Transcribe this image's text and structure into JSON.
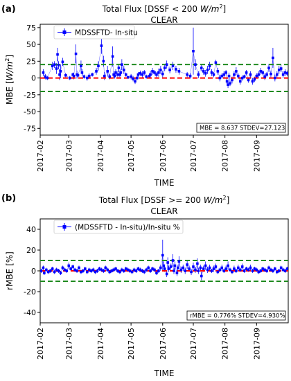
{
  "chart_data": [
    {
      "panel_label": "(a)",
      "type": "scatter",
      "title_line1_pre": "Total Flux  [DSSF < 200 ",
      "title_unit": "W/m",
      "title_sup": "2",
      "title_line1_post": "]",
      "title_line2": "CLEAR",
      "ylabel_pre": "MBE [",
      "ylabel_unit": "W/m",
      "ylabel_sup": "2",
      "ylabel_post": "]",
      "xlabel": "TIME",
      "ylim": [
        -85,
        80
      ],
      "yticks": [
        -75,
        -50,
        -25,
        0,
        25,
        50,
        75
      ],
      "xlim": [
        0,
        243
      ],
      "xtick_labels": [
        "2017-02",
        "2017-03",
        "2017-04",
        "2017-05",
        "2017-06",
        "2017-07",
        "2017-08",
        "2017-09"
      ],
      "xtick_days": [
        0,
        28,
        59,
        89,
        120,
        150,
        181,
        212
      ],
      "legend": "MDSSFTD- In-situ",
      "legend_placement": "top-left",
      "stats": "MBE = 8.637  STDEV=27.123",
      "ref_lines": [
        {
          "y": 20,
          "color": "#1f8a1f",
          "style": "dashed"
        },
        {
          "y": 0,
          "color": "#ff0000",
          "style": "dashed"
        },
        {
          "y": -20,
          "color": "#1f8a1f",
          "style": "dashed"
        }
      ],
      "series_color": "#0000ff",
      "points": [
        [
          3,
          8,
          5
        ],
        [
          5,
          2,
          4
        ],
        [
          7,
          0,
          3
        ],
        [
          12,
          18,
          6
        ],
        [
          14,
          20,
          5
        ],
        [
          16,
          14,
          8
        ],
        [
          17,
          35,
          10
        ],
        [
          18,
          19,
          6
        ],
        [
          19,
          5,
          8
        ],
        [
          20,
          10,
          10
        ],
        [
          22,
          24,
          6
        ],
        [
          25,
          4,
          3
        ],
        [
          29,
          0,
          3
        ],
        [
          32,
          5,
          3
        ],
        [
          33,
          3,
          5
        ],
        [
          35,
          36,
          14
        ],
        [
          36,
          5,
          6
        ],
        [
          37,
          4,
          3
        ],
        [
          40,
          18,
          8
        ],
        [
          41,
          8,
          5
        ],
        [
          43,
          2,
          3
        ],
        [
          46,
          0,
          4
        ],
        [
          48,
          3,
          4
        ],
        [
          51,
          5,
          3
        ],
        [
          55,
          10,
          5
        ],
        [
          57,
          18,
          7
        ],
        [
          60,
          48,
          12
        ],
        [
          62,
          25,
          8
        ],
        [
          63,
          3,
          6
        ],
        [
          66,
          10,
          8
        ],
        [
          68,
          2,
          4
        ],
        [
          71,
          32,
          15
        ],
        [
          72,
          5,
          5
        ],
        [
          73,
          3,
          4
        ],
        [
          74,
          8,
          5
        ],
        [
          76,
          5,
          5
        ],
        [
          77,
          15,
          6
        ],
        [
          78,
          5,
          4
        ],
        [
          79,
          8,
          5
        ],
        [
          80,
          20,
          8
        ],
        [
          82,
          12,
          6
        ],
        [
          84,
          5,
          3
        ],
        [
          86,
          1,
          2
        ],
        [
          89,
          2,
          4
        ],
        [
          91,
          -1,
          4
        ],
        [
          93,
          -5,
          4
        ],
        [
          95,
          0,
          3
        ],
        [
          96,
          5,
          4
        ],
        [
          98,
          7,
          4
        ],
        [
          100,
          5,
          5
        ],
        [
          102,
          8,
          4
        ],
        [
          104,
          2,
          3
        ],
        [
          107,
          3,
          4
        ],
        [
          108,
          5,
          6
        ],
        [
          110,
          10,
          5
        ],
        [
          112,
          8,
          4
        ],
        [
          114,
          5,
          4
        ],
        [
          116,
          8,
          6
        ],
        [
          118,
          12,
          6
        ],
        [
          120,
          6,
          5
        ],
        [
          122,
          15,
          5
        ],
        [
          124,
          20,
          6
        ],
        [
          127,
          12,
          5
        ],
        [
          130,
          18,
          6
        ],
        [
          133,
          13,
          5
        ],
        [
          136,
          10,
          5
        ],
        [
          144,
          5,
          4
        ],
        [
          147,
          3,
          4
        ],
        [
          150,
          40,
          35
        ],
        [
          152,
          20,
          8
        ],
        [
          155,
          5,
          5
        ],
        [
          158,
          15,
          5
        ],
        [
          160,
          10,
          5
        ],
        [
          162,
          7,
          5
        ],
        [
          164,
          12,
          6
        ],
        [
          166,
          18,
          6
        ],
        [
          168,
          8,
          5
        ],
        [
          170,
          5,
          4
        ],
        [
          172,
          23,
          4
        ],
        [
          174,
          10,
          5
        ],
        [
          176,
          0,
          5
        ],
        [
          178,
          3,
          4
        ],
        [
          180,
          5,
          5
        ],
        [
          182,
          8,
          4
        ],
        [
          183,
          -5,
          4
        ],
        [
          184,
          -10,
          5
        ],
        [
          185,
          3,
          5
        ],
        [
          186,
          -8,
          4
        ],
        [
          188,
          -3,
          5
        ],
        [
          190,
          5,
          5
        ],
        [
          192,
          10,
          6
        ],
        [
          194,
          3,
          4
        ],
        [
          196,
          -5,
          5
        ],
        [
          198,
          0,
          4
        ],
        [
          200,
          2,
          3
        ],
        [
          202,
          8,
          4
        ],
        [
          204,
          -3,
          4
        ],
        [
          206,
          5,
          5
        ],
        [
          208,
          -5,
          5
        ],
        [
          210,
          -2,
          4
        ],
        [
          212,
          3,
          4
        ],
        [
          214,
          5,
          5
        ],
        [
          216,
          10,
          5
        ],
        [
          218,
          8,
          4
        ],
        [
          220,
          2,
          5
        ],
        [
          222,
          5,
          4
        ],
        [
          224,
          15,
          6
        ],
        [
          226,
          6,
          5
        ],
        [
          228,
          30,
          15
        ],
        [
          230,
          0,
          5
        ],
        [
          232,
          5,
          5
        ],
        [
          234,
          12,
          6
        ],
        [
          236,
          14,
          5
        ],
        [
          238,
          5,
          5
        ],
        [
          240,
          8,
          5
        ],
        [
          242,
          7,
          4
        ]
      ]
    },
    {
      "panel_label": "(b)",
      "type": "scatter",
      "title_line1_pre": "Total Flux  [DSSF >= 200 ",
      "title_unit": "W/m",
      "title_sup": "2",
      "title_line1_post": "]",
      "title_line2": "CLEAR",
      "ylabel_pre": "rMBE [%]",
      "ylabel_unit": "",
      "ylabel_sup": "",
      "ylabel_post": "",
      "xlabel": "TIME",
      "ylim": [
        -50,
        50
      ],
      "yticks": [
        -40,
        -20,
        0,
        20,
        40
      ],
      "xlim": [
        0,
        243
      ],
      "xtick_labels": [
        "2017-02",
        "2017-03",
        "2017-04",
        "2017-05",
        "2017-06",
        "2017-07",
        "2017-08",
        "2017-09"
      ],
      "xtick_days": [
        0,
        28,
        59,
        89,
        120,
        150,
        181,
        212
      ],
      "legend": "(MDSSFTD - In-situ)/In-situ %",
      "legend_placement": "top-left",
      "stats": "rMBE = 0.776%   STDEV=4.930%",
      "ref_lines": [
        {
          "y": 10,
          "color": "#1f8a1f",
          "style": "dashed"
        },
        {
          "y": 0,
          "color": "#ff0000",
          "style": "dashed"
        },
        {
          "y": -10,
          "color": "#1f8a1f",
          "style": "dashed"
        }
      ],
      "series_color": "#0000ff",
      "points": [
        [
          1,
          0,
          2
        ],
        [
          3,
          3,
          2
        ],
        [
          4,
          -2,
          2
        ],
        [
          6,
          1,
          2
        ],
        [
          8,
          -1,
          2
        ],
        [
          10,
          0,
          2
        ],
        [
          12,
          2,
          2
        ],
        [
          14,
          -1,
          2
        ],
        [
          16,
          1,
          2
        ],
        [
          18,
          0,
          2
        ],
        [
          20,
          -2,
          2
        ],
        [
          22,
          3,
          2
        ],
        [
          24,
          1,
          2
        ],
        [
          26,
          0,
          2
        ],
        [
          28,
          5,
          3
        ],
        [
          30,
          2,
          2
        ],
        [
          32,
          4,
          2
        ],
        [
          34,
          1,
          2
        ],
        [
          36,
          0,
          2
        ],
        [
          38,
          3,
          2
        ],
        [
          40,
          -1,
          2
        ],
        [
          42,
          0,
          2
        ],
        [
          44,
          2,
          2
        ],
        [
          46,
          -1,
          2
        ],
        [
          48,
          1,
          2
        ],
        [
          50,
          0,
          2
        ],
        [
          52,
          1,
          2
        ],
        [
          54,
          -1,
          2
        ],
        [
          56,
          0,
          2
        ],
        [
          58,
          2,
          2
        ],
        [
          60,
          1,
          2
        ],
        [
          62,
          0,
          2
        ],
        [
          64,
          3,
          2
        ],
        [
          66,
          1,
          2
        ],
        [
          68,
          -1,
          2
        ],
        [
          70,
          0,
          2
        ],
        [
          72,
          1,
          2
        ],
        [
          74,
          2,
          2
        ],
        [
          76,
          0,
          2
        ],
        [
          78,
          -1,
          2
        ],
        [
          80,
          1,
          2
        ],
        [
          82,
          0,
          2
        ],
        [
          84,
          2,
          2
        ],
        [
          86,
          1,
          2
        ],
        [
          88,
          0,
          2
        ],
        [
          90,
          -1,
          2
        ],
        [
          92,
          1,
          2
        ],
        [
          94,
          0,
          2
        ],
        [
          96,
          2,
          2
        ],
        [
          98,
          1,
          2
        ],
        [
          100,
          0,
          2
        ],
        [
          102,
          -1,
          2
        ],
        [
          104,
          1,
          2
        ],
        [
          106,
          3,
          2
        ],
        [
          108,
          0,
          2
        ],
        [
          110,
          2,
          2
        ],
        [
          112,
          1,
          2
        ],
        [
          114,
          -2,
          2
        ],
        [
          116,
          0,
          2
        ],
        [
          118,
          3,
          3
        ],
        [
          120,
          15,
          15
        ],
        [
          121,
          5,
          4
        ],
        [
          122,
          2,
          3
        ],
        [
          124,
          -3,
          3
        ],
        [
          125,
          8,
          5
        ],
        [
          126,
          2,
          3
        ],
        [
          128,
          4,
          3
        ],
        [
          130,
          10,
          6
        ],
        [
          131,
          0,
          3
        ],
        [
          132,
          5,
          4
        ],
        [
          134,
          -2,
          3
        ],
        [
          135,
          3,
          3
        ],
        [
          136,
          9,
          5
        ],
        [
          138,
          1,
          3
        ],
        [
          140,
          3,
          3
        ],
        [
          142,
          0,
          3
        ],
        [
          144,
          6,
          4
        ],
        [
          146,
          2,
          3
        ],
        [
          148,
          -1,
          3
        ],
        [
          150,
          4,
          4
        ],
        [
          152,
          1,
          3
        ],
        [
          154,
          7,
          5
        ],
        [
          155,
          0,
          3
        ],
        [
          157,
          3,
          3
        ],
        [
          158,
          -5,
          4
        ],
        [
          160,
          2,
          3
        ],
        [
          162,
          5,
          4
        ],
        [
          164,
          1,
          3
        ],
        [
          166,
          3,
          3
        ],
        [
          168,
          0,
          2
        ],
        [
          170,
          2,
          3
        ],
        [
          172,
          4,
          3
        ],
        [
          174,
          -1,
          2
        ],
        [
          176,
          1,
          2
        ],
        [
          178,
          3,
          3
        ],
        [
          180,
          0,
          2
        ],
        [
          182,
          2,
          3
        ],
        [
          184,
          5,
          4
        ],
        [
          186,
          1,
          2
        ],
        [
          188,
          -1,
          2
        ],
        [
          190,
          2,
          3
        ],
        [
          192,
          0,
          2
        ],
        [
          194,
          3,
          3
        ],
        [
          196,
          1,
          2
        ],
        [
          198,
          4,
          3
        ],
        [
          200,
          0,
          2
        ],
        [
          202,
          2,
          2
        ],
        [
          204,
          1,
          2
        ],
        [
          206,
          3,
          3
        ],
        [
          208,
          0,
          2
        ],
        [
          210,
          2,
          2
        ],
        [
          212,
          1,
          2
        ],
        [
          214,
          -1,
          2
        ],
        [
          216,
          0,
          2
        ],
        [
          218,
          2,
          2
        ],
        [
          220,
          1,
          2
        ],
        [
          222,
          0,
          2
        ],
        [
          224,
          3,
          2
        ],
        [
          226,
          1,
          2
        ],
        [
          228,
          0,
          2
        ],
        [
          230,
          2,
          2
        ],
        [
          232,
          -1,
          2
        ],
        [
          234,
          0,
          2
        ],
        [
          236,
          3,
          2
        ],
        [
          238,
          1,
          2
        ],
        [
          240,
          0,
          2
        ],
        [
          242,
          2,
          2
        ]
      ]
    }
  ]
}
